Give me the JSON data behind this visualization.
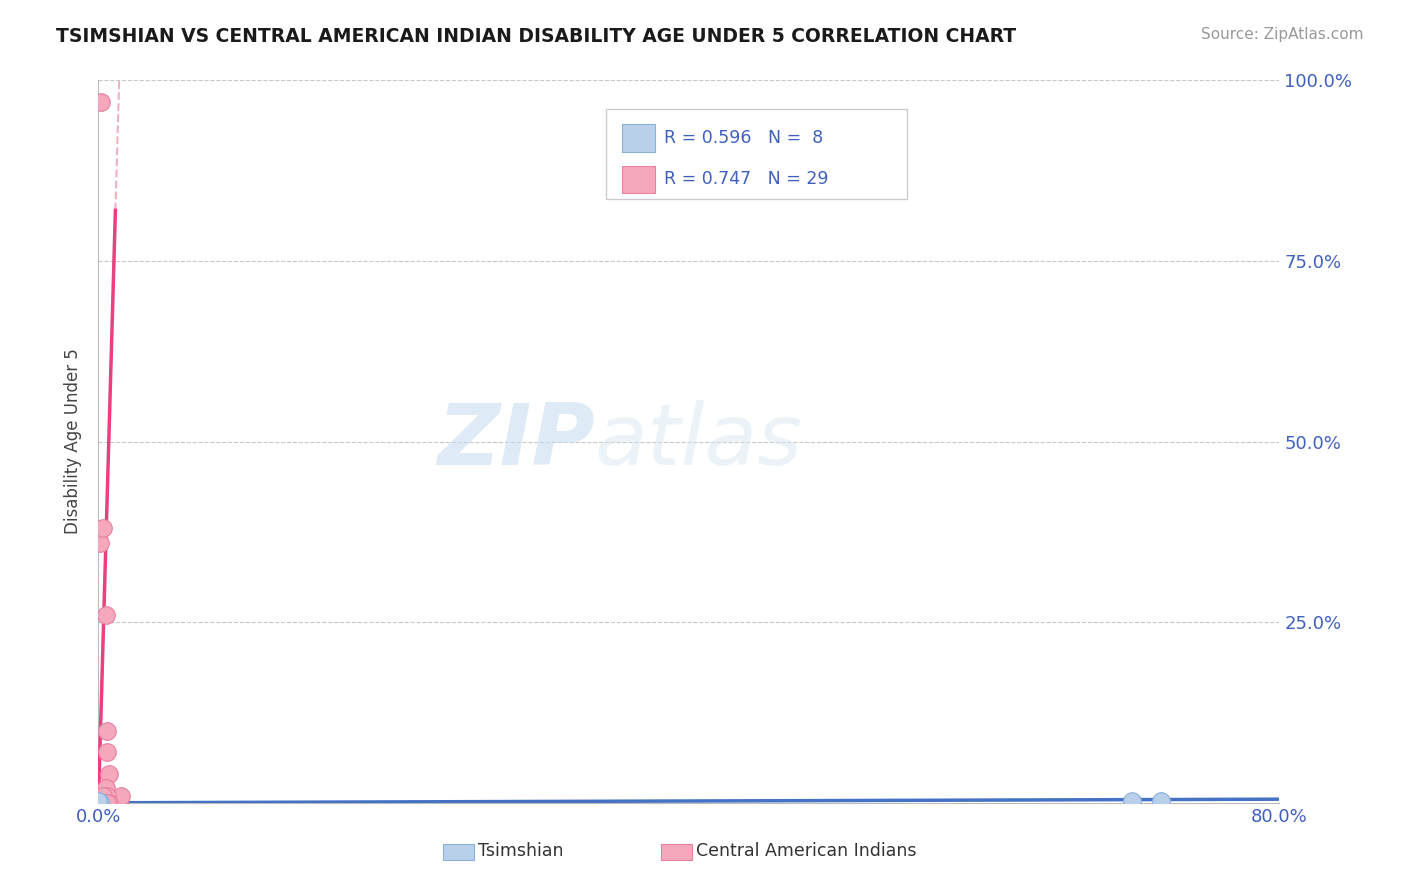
{
  "title": "TSIMSHIAN VS CENTRAL AMERICAN INDIAN DISABILITY AGE UNDER 5 CORRELATION CHART",
  "source": "Source: ZipAtlas.com",
  "ylabel": "Disability Age Under 5",
  "watermark_zip": "ZIP",
  "watermark_atlas": "atlas",
  "tsimshian_color": "#b8d0ea",
  "tsimshian_edge": "#8ab0d8",
  "central_color": "#f5a8bc",
  "central_edge": "#e880a0",
  "tsimshian_line_color": "#4472c4",
  "central_line_color": "#e84080",
  "central_dash_color": "#f0b0c0",
  "grid_color": "#c8c8c8",
  "background_color": "#ffffff",
  "tsimshian_x": [
    0.0,
    0.001,
    0.0,
    0.0,
    0.001,
    0.0,
    0.7,
    0.72
  ],
  "tsimshian_y": [
    0.0,
    0.0,
    0.001,
    0.0,
    0.001,
    0.002,
    0.002,
    0.003
  ],
  "central_x": [
    0.002,
    0.001,
    0.002,
    0.003,
    0.004,
    0.003,
    0.004,
    0.005,
    0.006,
    0.007,
    0.005,
    0.006,
    0.007,
    0.008,
    0.009,
    0.01,
    0.011,
    0.012,
    0.013,
    0.014,
    0.015,
    0.004,
    0.005,
    0.006,
    0.007,
    0.003,
    0.004,
    0.005,
    0.006
  ],
  "central_y": [
    0.97,
    0.36,
    0.0,
    0.0,
    0.0,
    0.38,
    0.0,
    0.0,
    0.07,
    0.04,
    0.26,
    0.1,
    0.0,
    0.0,
    0.0,
    0.0,
    0.0,
    0.0,
    0.0,
    0.0,
    0.01,
    0.0,
    0.02,
    0.01,
    0.0,
    0.01,
    0.0,
    0.0,
    0.0
  ],
  "xlim": [
    0.0,
    0.8
  ],
  "ylim": [
    0.0,
    1.0
  ],
  "xticks": [
    0.0,
    0.1,
    0.2,
    0.3,
    0.4,
    0.5,
    0.6,
    0.7,
    0.8
  ],
  "xtick_labels": [
    "0.0%",
    "",
    "",
    "",
    "",
    "",
    "",
    "",
    "80.0%"
  ],
  "ytick_positions": [
    0.0,
    0.25,
    0.5,
    0.75,
    1.0
  ],
  "ytick_labels": [
    "",
    "25.0%",
    "50.0%",
    "75.0%",
    "100.0%"
  ],
  "tick_color": "#4060c0",
  "title_color": "#1a1a1a",
  "source_color": "#999999",
  "ylabel_color": "#444444"
}
